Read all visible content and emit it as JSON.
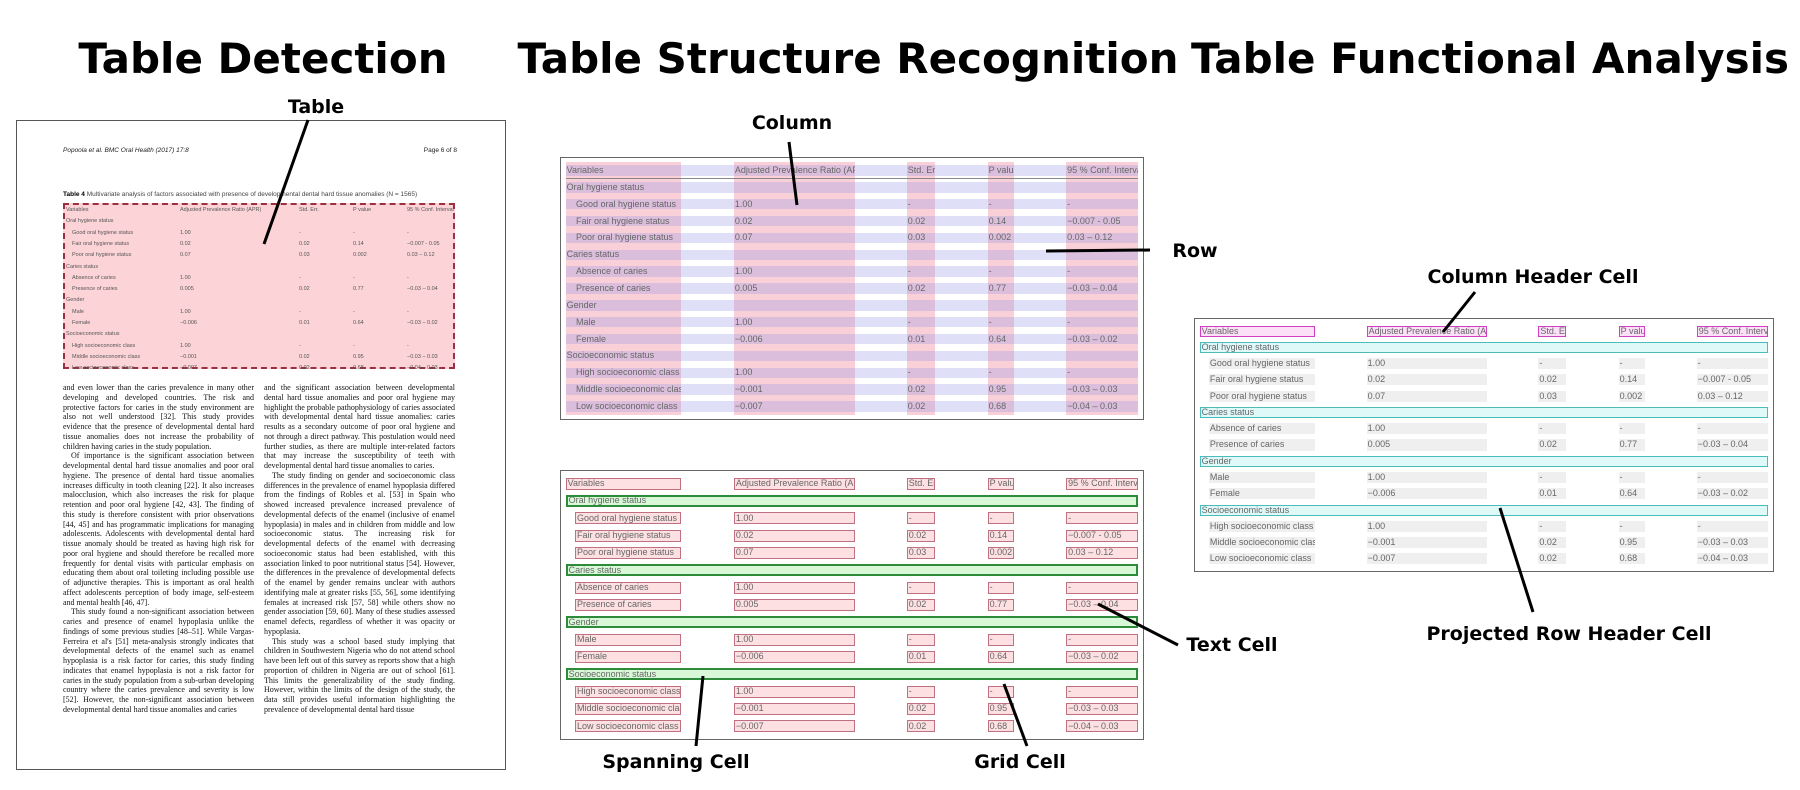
{
  "titles": {
    "detection": "Table Detection",
    "structure": "Table Structure Recognition",
    "functional": "Table Functional Analysis"
  },
  "labels": {
    "table": "Table",
    "column": "Column",
    "row": "Row",
    "column_header_cell": "Column Header Cell",
    "projected_row_header_cell": "Projected Row Header Cell",
    "text_cell": "Text Cell",
    "spanning_cell": "Spanning Cell",
    "grid_cell": "Grid Cell"
  },
  "colors": {
    "column_band": "#f07890",
    "row_band": "#9696e6",
    "grid_cell_fill": "#fde0e2",
    "grid_cell_border": "#c07080",
    "spanning_cell_fill": "#d8f8d8",
    "spanning_cell_border": "#2e8b3a",
    "column_header_border": "#d040c0",
    "projected_row_header_border": "#4bbcbc",
    "detection_fill": "#fcd4d8",
    "detection_border": "#9a3040"
  },
  "page": {
    "running_head_left": "Popoola et al. BMC Oral Health  (2017) 17:8",
    "running_head_right": "Page 6 of 8",
    "caption_label": "Table 4",
    "caption_text": " Multivariate analysis of factors associated with presence of developmental dental hard tissue anomalies (N = 1565)",
    "left_column": [
      "and even lower than the caries prevalence in many other developing and developed countries. The risk and protective factors for caries in the study environment are also not well understood [32]. This study provides evidence that the presence of developmental dental hard tissue anomalies does not increase the probability of children having caries in the study population.",
      "Of importance is the significant association between developmental dental hard tissue anomalies and poor oral hygiene. The presence of dental hard tissue anomalies increases difficulty in tooth cleaning [22]. It also increases malocclusion, which also increases the risk for plaque retention and poor oral hygiene [42, 43]. The finding of this study is therefore consistent with prior observations [44, 45] and has programmatic implications for managing adolescents. Adolescents with developmental dental hard tissue anomaly should be treated as having high risk for poor oral hygiene and should therefore be recalled more frequently for dental visits with particular emphasis on educating them about oral toileting including possible use of adjunctive therapies. This is important as oral health affect adolescents perception of body image, self-esteem and mental health [46, 47].",
      "This study found a non-significant association between caries and presence of enamel hypoplasia unlike the findings of some previous studies [48–51]. While Vargas-Ferreira et al's [51] meta-analysis strongly indicates that developmental defects of the enamel such as enamel hypoplasia is a risk factor for caries, this study finding indicates that enamel hypoplasia is not a risk factor for caries in the study population from a sub-urban developing country where the caries prevalence and severity is low [52]. However, the non-significant association between developmental dental hard tissue anomalies and caries"
    ],
    "right_column": [
      "and the significant association between developmental dental hard tissue anomalies and poor oral hygiene may highlight the probable pathophysiology of caries associated with developmental dental hard tissue anomalies: caries results as a secondary outcome of poor oral hygiene and not through a direct pathway. This postulation would need further studies, as there are multiple inter-related factors that may increase the susceptibility of teeth with developmental dental hard tissue anomalies to caries.",
      "The study finding on gender and socioeconomic class differences in the prevalence of enamel hypoplasia differed from the findings of Robles et al. [53] in Spain who showed increased prevalence increased prevalence of developmental defects of the enamel (inclusive of enamel hypoplasia) in males and in children from middle and low socioeconomic status. The increasing risk for developmental defects of the enamel with decreasing socioeconomic status had been established, with this association linked to poor nutritional status [54]. However, the differences in the prevalence of developmental defects of the enamel by gender remains unclear with authors identifying male at greater risks [55, 56], some identifying females at increased risk [57, 58] while others show no gender association [59, 60]. Many of these studies assessed enamel defects, regardless of whether it was opacity or hypoplasia.",
      "This study was a school based study implying that children in Southwestern Nigeria who do not attend school have been left out of this survey as reports show that a high proportion of children in Nigeria are out of school [61]. This limits the generalizability of the study finding. However, within the limits of the design of the study, the data still provides useful information highlighting the prevalence of developmental dental hard tissue"
    ]
  },
  "table": {
    "headers": [
      "Variables",
      "Adjusted Prevalence Ratio (APR)",
      "Std. Err.",
      "P value",
      "95 % Conf. Interval"
    ],
    "rows": [
      {
        "section": "Oral hygiene status"
      },
      {
        "cells": [
          "Good oral hygiene status",
          "1.00",
          "-",
          "-",
          "-"
        ]
      },
      {
        "cells": [
          "Fair oral hygiene status",
          "0.02",
          "0.02",
          "0.14",
          "−0.007 - 0.05"
        ]
      },
      {
        "cells": [
          "Poor oral hygiene status",
          "0.07",
          "0.03",
          "0.002",
          "0.03 – 0.12"
        ]
      },
      {
        "section": "Caries status"
      },
      {
        "cells": [
          "Absence of caries",
          "1.00",
          "-",
          "-",
          "-"
        ]
      },
      {
        "cells": [
          "Presence of caries",
          "0.005",
          "0.02",
          "0.77",
          "−0.03 – 0.04"
        ]
      },
      {
        "section": "Gender"
      },
      {
        "cells": [
          "Male",
          "1.00",
          "-",
          "-",
          "-"
        ]
      },
      {
        "cells": [
          "Female",
          "−0.006",
          "0.01",
          "0.64",
          "−0.03 – 0.02"
        ]
      },
      {
        "section": "Socioeconomic status"
      },
      {
        "cells": [
          "High socioeconomic class",
          "1.00",
          "-",
          "-",
          "-"
        ]
      },
      {
        "cells": [
          "Middle socioeconomic class",
          "−0.001",
          "0.02",
          "0.95",
          "−0.03 – 0.03"
        ]
      },
      {
        "cells": [
          "Low socioeconomic class",
          "−0.007",
          "0.02",
          "0.68",
          "−0.04 – 0.03"
        ]
      }
    ]
  }
}
